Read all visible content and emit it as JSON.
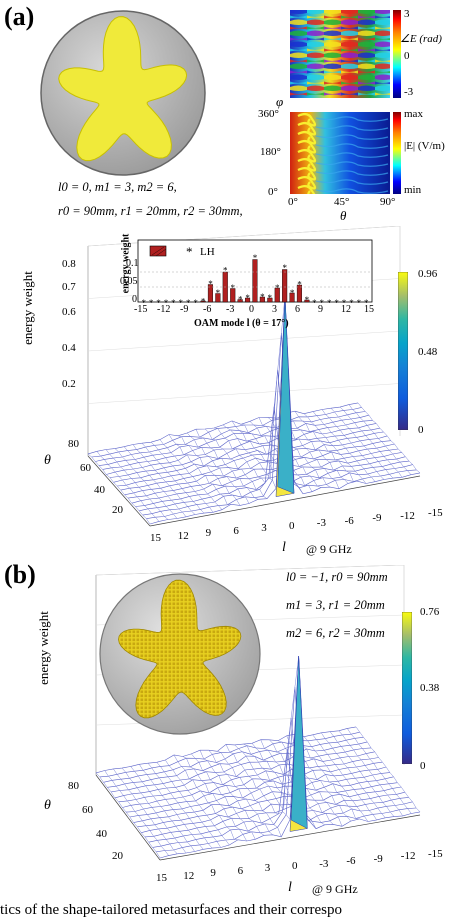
{
  "figure": {
    "panel_a_label": "(a)",
    "panel_b_label": "(b)",
    "caption_fragment": "tics of the shape-tailored metasurfaces and their correspo"
  },
  "panel_a": {
    "params_line1": "l0 = 0,  m1 = 3, m2 = 6,",
    "params_line2": "r0 = 90mm, r1 = 20mm, r2 = 30mm,",
    "phase_map": {
      "colorbar_label": "∠E (rad)",
      "colorbar_ticks": [
        "3",
        "0",
        "-3"
      ]
    },
    "amp_map": {
      "ylabel": "φ",
      "xlabel": "θ",
      "y_ticks": [
        "360°",
        "180°",
        "0°"
      ],
      "x_ticks": [
        "0°",
        "45°",
        "90°"
      ],
      "colorbar_label": "|E| (V/m)",
      "colorbar_ticks": [
        "max",
        "min"
      ]
    },
    "surface_plot": {
      "zlabel": "energy weight",
      "z_ticks": [
        "0.8",
        "0.7",
        "0.6",
        "0.4",
        "0.2"
      ],
      "theta_label": "θ",
      "theta_ticks": [
        "80",
        "60",
        "40",
        "20"
      ],
      "l_label": "l",
      "freq_label": "@ 9 GHz",
      "l_ticks": [
        "15",
        "12",
        "9",
        "6",
        "3",
        "0",
        "-3",
        "-6",
        "-9",
        "-12",
        "-15"
      ],
      "colorbar_ticks": [
        "0.96",
        "0.48",
        "0"
      ]
    },
    "inset": {
      "ylabel": "energy weight",
      "y_ticks": [
        "0.1",
        "0.05",
        "0"
      ],
      "x_ticks": [
        "-15",
        "-12",
        "-9",
        "-6",
        "-3",
        "0",
        "3",
        "6",
        "9",
        "12",
        "15"
      ],
      "xlabel": "OAM mode l (θ = 17°)",
      "legend_marker": "*",
      "legend_label": "LH"
    }
  },
  "panel_b": {
    "param_line1": "l0 = −1, r0 = 90mm",
    "param_line2": "m1 = 3, r1 = 20mm",
    "param_line3": "m2 = 6, r2 = 30mm",
    "surface_plot": {
      "zlabel": "energy weight",
      "theta_label": "θ",
      "theta_ticks": [
        "80",
        "60",
        "40",
        "20"
      ],
      "l_label": "l",
      "freq_label": "@ 9 GHz",
      "l_ticks": [
        "15",
        "12",
        "9",
        "6",
        "3",
        "0",
        "-3",
        "-6",
        "-9",
        "-12",
        "-15"
      ],
      "colorbar_ticks": [
        "0.76",
        "0.38",
        "0"
      ]
    }
  },
  "chart_data": [
    {
      "type": "bar",
      "categories": [
        "-15",
        "-14",
        "-13",
        "-12",
        "-11",
        "-10",
        "-9",
        "-8",
        "-7",
        "-6",
        "-5",
        "-4",
        "-3",
        "-2",
        "-1",
        "0",
        "1",
        "2",
        "3",
        "4",
        "5",
        "6",
        "7",
        "8",
        "9",
        "10",
        "11",
        "12",
        "13",
        "14",
        "15"
      ],
      "series": [
        {
          "values": [
            0,
            0,
            0,
            0,
            0,
            0,
            0,
            0,
            0.002,
            0.035,
            0.017,
            0.06,
            0.027,
            0.005,
            0.008,
            0.085,
            0.01,
            0.008,
            0.028,
            0.065,
            0.018,
            0.034,
            0.004,
            0,
            0,
            0,
            0,
            0,
            0,
            0,
            0
          ]
        },
        {
          "name": "LH",
          "values": [
            0,
            0,
            0,
            0,
            0,
            0,
            0,
            0,
            0.003,
            0.038,
            0.02,
            0.065,
            0.03,
            0.007,
            0.01,
            0.09,
            0.012,
            0.01,
            0.03,
            0.07,
            0.02,
            0.037,
            0.006,
            0,
            0,
            0,
            0,
            0,
            0,
            0,
            0
          ]
        }
      ],
      "ylabel": "energy weight",
      "xlabel": "OAM mode l (θ = 17°)",
      "ylim": [
        0,
        0.12
      ]
    },
    {
      "type": "area",
      "x": [
        15,
        12,
        9,
        6,
        3,
        0,
        -3,
        -6,
        -9,
        -12,
        -15
      ],
      "values": [
        0.01,
        0.01,
        0.02,
        0.04,
        0.06,
        0.96,
        0.05,
        0.04,
        0.02,
        0.01,
        0.01
      ],
      "zlabel": "energy weight",
      "ylim": [
        0,
        0.96
      ]
    },
    {
      "type": "area",
      "x": [
        15,
        12,
        9,
        6,
        3,
        0,
        -3,
        -6,
        -9,
        -12,
        -15
      ],
      "values": [
        0.01,
        0.01,
        0.02,
        0.04,
        0.06,
        0.08,
        0.76,
        0.05,
        0.03,
        0.01,
        0.01
      ],
      "zlabel": "energy weight",
      "ylim": [
        0,
        0.76
      ]
    }
  ]
}
